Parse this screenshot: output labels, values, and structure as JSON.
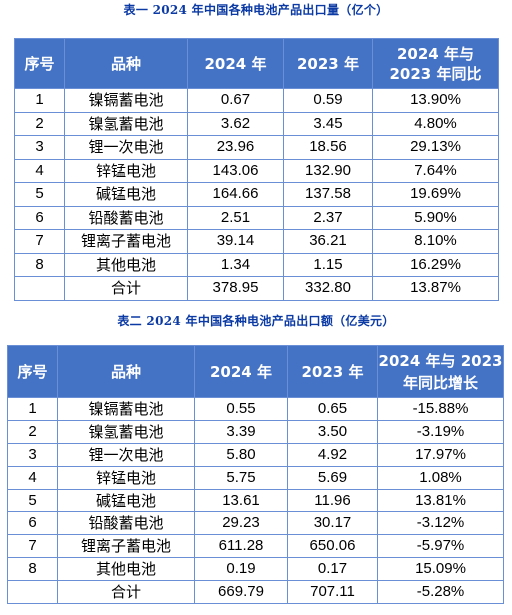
{
  "table1": {
    "caption": "表一 2024 年中国各种电池产品出口量（亿个）",
    "headers": {
      "no": "序号",
      "kind": "品种",
      "y2024": "2024 年",
      "y2023": "2023 年",
      "change_line1": "2024 年与",
      "change_line2": "2023 年同比"
    },
    "rows": [
      {
        "no": "1",
        "kind": "镍镉蓄电池",
        "y2024": "0.67",
        "y2023": "0.59",
        "change": "13.90%"
      },
      {
        "no": "2",
        "kind": "镍氢蓄电池",
        "y2024": "3.62",
        "y2023": "3.45",
        "change": "4.80%"
      },
      {
        "no": "3",
        "kind": "锂一次电池",
        "y2024": "23.96",
        "y2023": "18.56",
        "change": "29.13%"
      },
      {
        "no": "4",
        "kind": "锌锰电池",
        "y2024": "143.06",
        "y2023": "132.90",
        "change": "7.64%"
      },
      {
        "no": "5",
        "kind": "碱锰电池",
        "y2024": "164.66",
        "y2023": "137.58",
        "change": "19.69%"
      },
      {
        "no": "6",
        "kind": "铅酸蓄电池",
        "y2024": "2.51",
        "y2023": "2.37",
        "change": "5.90%"
      },
      {
        "no": "7",
        "kind": "锂离子蓄电池",
        "y2024": "39.14",
        "y2023": "36.21",
        "change": "8.10%"
      },
      {
        "no": "8",
        "kind": "其他电池",
        "y2024": "1.34",
        "y2023": "1.15",
        "change": "16.29%"
      }
    ],
    "total": {
      "label": "合计",
      "y2024": "378.95",
      "y2023": "332.80",
      "change": "13.87%"
    }
  },
  "table2": {
    "caption": "表二 2024 年中国各种电池产品出口额（亿美元）",
    "headers": {
      "no": "序号",
      "kind": "品种",
      "y2024": "2024 年",
      "y2023": "2023 年",
      "change_line1": "2024 年与 2023",
      "change_line2": "年同比增长"
    },
    "rows": [
      {
        "no": "1",
        "kind": "镍镉蓄电池",
        "y2024": "0.55",
        "y2023": "0.65",
        "change": "-15.88%"
      },
      {
        "no": "2",
        "kind": "镍氢蓄电池",
        "y2024": "3.39",
        "y2023": "3.50",
        "change": "-3.19%"
      },
      {
        "no": "3",
        "kind": "锂一次电池",
        "y2024": "5.80",
        "y2023": "4.92",
        "change": "17.97%"
      },
      {
        "no": "4",
        "kind": "锌锰电池",
        "y2024": "5.75",
        "y2023": "5.69",
        "change": "1.08%"
      },
      {
        "no": "5",
        "kind": "碱锰电池",
        "y2024": "13.61",
        "y2023": "11.96",
        "change": "13.81%"
      },
      {
        "no": "6",
        "kind": "铅酸蓄电池",
        "y2024": "29.23",
        "y2023": "30.17",
        "change": "-3.12%"
      },
      {
        "no": "7",
        "kind": "锂离子蓄电池",
        "y2024": "611.28",
        "y2023": "650.06",
        "change": "-5.97%"
      },
      {
        "no": "8",
        "kind": "其他电池",
        "y2024": "0.19",
        "y2023": "0.17",
        "change": "15.09%"
      }
    ],
    "total": {
      "label": "合计",
      "y2024": "669.79",
      "y2023": "707.11",
      "change": "-5.28%"
    }
  }
}
